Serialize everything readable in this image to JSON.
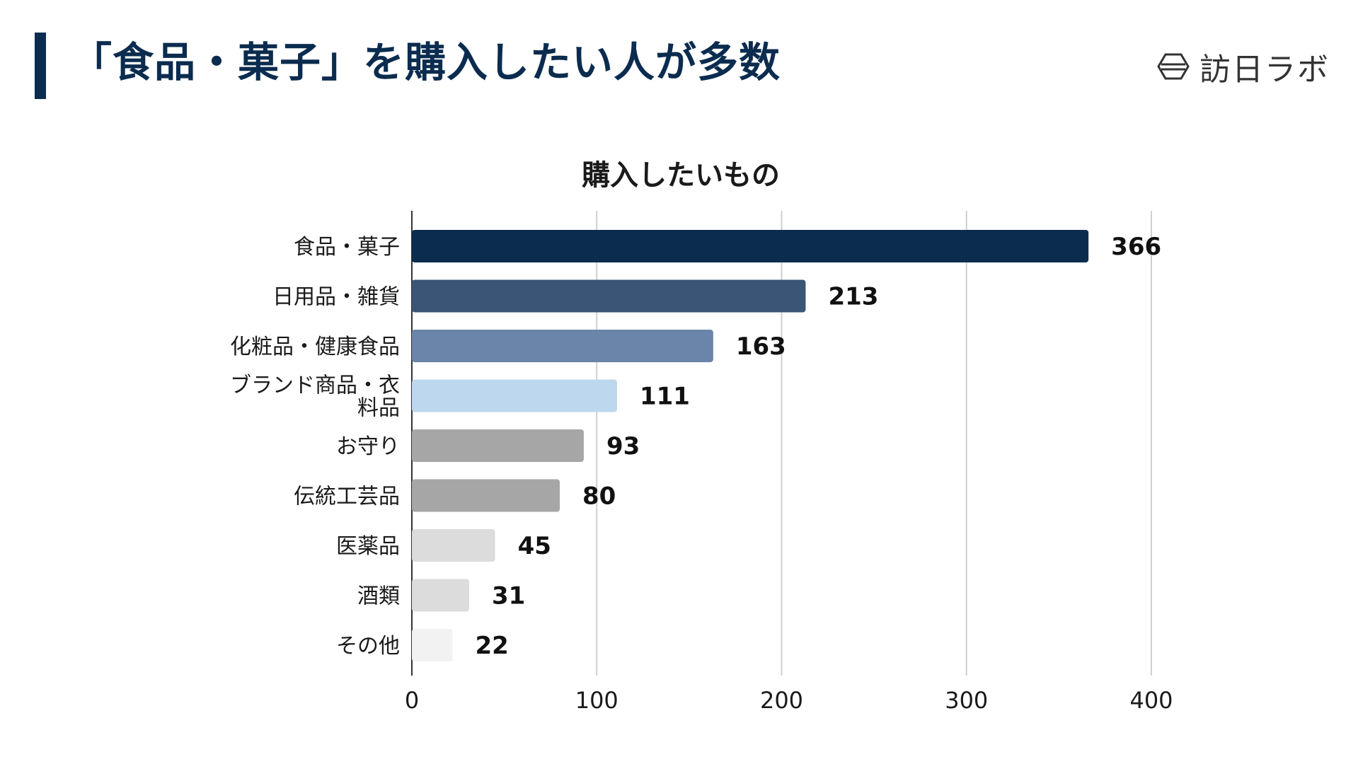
{
  "header": {
    "title": "「食品・菓子」を購入したい人が多数",
    "accent_color": "#0b2c4f",
    "logo_text": "訪日ラボ",
    "logo_icon": "hexagon-logo-icon"
  },
  "chart_data": {
    "type": "bar",
    "orientation": "horizontal",
    "title": "購入したいもの",
    "categories": [
      "食品・菓子",
      "日用品・雑貨",
      "化粧品・健康食品",
      "ブランド商品・衣料品",
      "お守り",
      "伝統工芸品",
      "医薬品",
      "酒類",
      "その他"
    ],
    "category_lines": [
      [
        "食品・菓子"
      ],
      [
        "日用品・雑貨"
      ],
      [
        "化粧品・健康食品"
      ],
      [
        "ブランド商品・衣",
        "料品"
      ],
      [
        "お守り"
      ],
      [
        "伝統工芸品"
      ],
      [
        "医薬品"
      ],
      [
        "酒類"
      ],
      [
        "その他"
      ]
    ],
    "values": [
      366,
      213,
      163,
      111,
      93,
      80,
      45,
      31,
      22
    ],
    "colors": [
      "#0b2c4f",
      "#3a5576",
      "#6a84aa",
      "#bdd7ef",
      "#a6a6a6",
      "#a6a6a6",
      "#dcdcdc",
      "#dcdcdc",
      "#f2f2f2"
    ],
    "xlabel": "",
    "ylabel": "",
    "xlim": [
      0,
      400
    ],
    "xticks": [
      0,
      100,
      200,
      300,
      400
    ],
    "grid": true,
    "data_labels": true
  }
}
